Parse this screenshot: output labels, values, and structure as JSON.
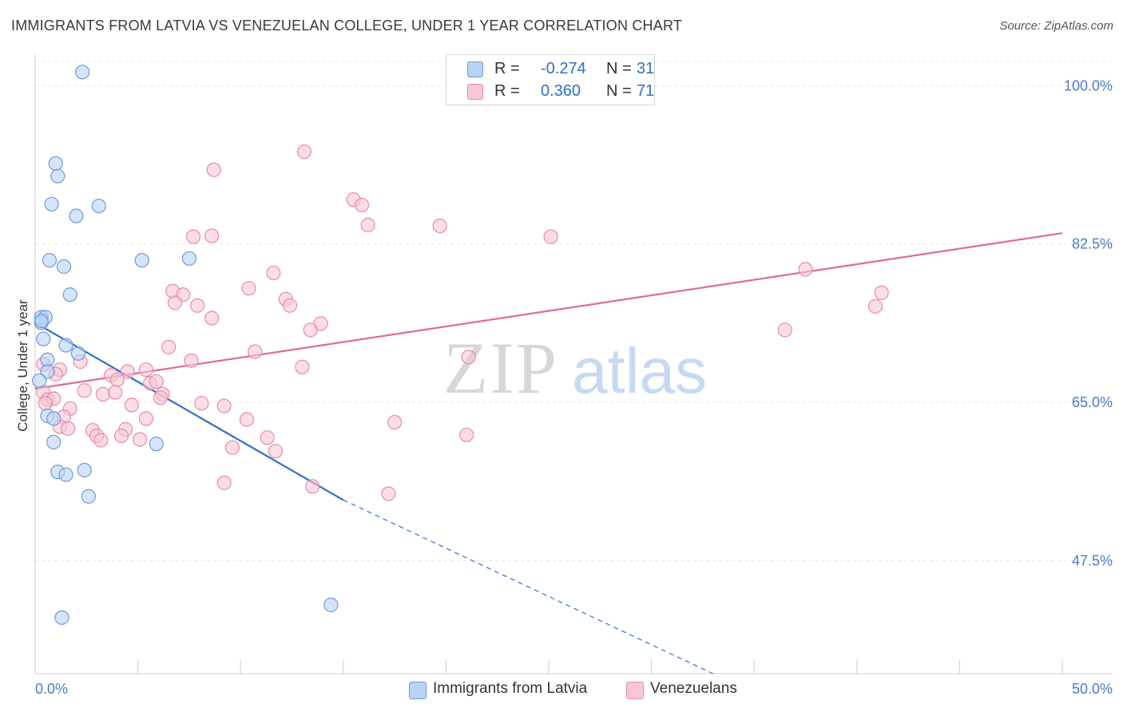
{
  "title": "IMMIGRANTS FROM LATVIA VS VENEZUELAN COLLEGE, UNDER 1 YEAR CORRELATION CHART",
  "source": "Source: ZipAtlas.com",
  "watermark": {
    "zip": "ZIP",
    "atlas": "atlas"
  },
  "legend": {
    "latvia": {
      "r_label": "R =",
      "r_value": "-0.274",
      "n_label": "N =",
      "n_value": "31"
    },
    "venezuela": {
      "r_label": "R =",
      "r_value": "0.360",
      "n_label": "N =",
      "n_value": "71"
    }
  },
  "colors": {
    "latvia_fill": "#b8d3f5",
    "latvia_stroke": "#6f9ad8",
    "latvia_line": "#2f6fd0",
    "venezuela_fill": "#f8c6d6",
    "venezuela_stroke": "#e98aa8",
    "venezuela_line": "#e06b94",
    "axis_text": "#4a7bc8",
    "grid": "#e3e3e3"
  },
  "chart_data": {
    "type": "scatter",
    "title": "IMMIGRANTS FROM LATVIA VS VENEZUELAN COLLEGE, UNDER 1 YEAR CORRELATION CHART",
    "xlabel": "",
    "ylabel": "College, Under 1 year",
    "xlim": [
      0,
      50
    ],
    "ylim": [
      35,
      104
    ],
    "x_tick_labels": [
      "0.0%",
      "50.0%"
    ],
    "y_ticks": [
      100,
      82.5,
      65,
      47.5
    ],
    "y_tick_labels": [
      "100.0%",
      "82.5%",
      "65.0%",
      "47.5%"
    ],
    "grid": true,
    "series": [
      {
        "name": "Immigrants from Latvia",
        "points": [
          [
            2.3,
            101.5
          ],
          [
            1.0,
            91.4
          ],
          [
            1.1,
            90.0
          ],
          [
            0.8,
            86.9
          ],
          [
            2.0,
            85.6
          ],
          [
            3.1,
            86.7
          ],
          [
            0.7,
            80.7
          ],
          [
            1.4,
            80.0
          ],
          [
            5.2,
            80.7
          ],
          [
            7.5,
            80.9
          ],
          [
            1.7,
            76.9
          ],
          [
            0.3,
            74.4
          ],
          [
            0.5,
            74.4
          ],
          [
            0.3,
            73.8
          ],
          [
            0.4,
            72.0
          ],
          [
            1.5,
            71.3
          ],
          [
            2.1,
            70.4
          ],
          [
            0.6,
            69.7
          ],
          [
            0.6,
            68.4
          ],
          [
            0.2,
            67.4
          ],
          [
            0.6,
            63.5
          ],
          [
            0.9,
            63.2
          ],
          [
            0.9,
            60.6
          ],
          [
            5.9,
            60.4
          ],
          [
            1.1,
            57.3
          ],
          [
            1.5,
            57.0
          ],
          [
            2.4,
            57.5
          ],
          [
            2.6,
            54.6
          ],
          [
            14.4,
            42.6
          ],
          [
            1.3,
            41.2
          ],
          [
            0.3,
            74.0
          ]
        ],
        "trend": {
          "x0": 0,
          "y0": 73.8,
          "x1": 15,
          "y1": 54.2,
          "dash_to_x": 33,
          "dash_to_y": 35
        }
      },
      {
        "name": "Venezuelans",
        "points": [
          [
            13.1,
            92.7
          ],
          [
            8.7,
            90.7
          ],
          [
            15.5,
            87.4
          ],
          [
            15.9,
            86.8
          ],
          [
            16.2,
            84.6
          ],
          [
            19.7,
            84.5
          ],
          [
            25.1,
            83.3
          ],
          [
            7.7,
            83.3
          ],
          [
            8.6,
            83.4
          ],
          [
            11.6,
            79.3
          ],
          [
            10.4,
            77.6
          ],
          [
            6.7,
            77.3
          ],
          [
            7.2,
            76.9
          ],
          [
            6.8,
            76.0
          ],
          [
            12.2,
            76.4
          ],
          [
            7.9,
            75.7
          ],
          [
            12.4,
            75.7
          ],
          [
            37.5,
            79.7
          ],
          [
            41.2,
            77.1
          ],
          [
            40.9,
            75.6
          ],
          [
            8.6,
            74.3
          ],
          [
            13.9,
            73.7
          ],
          [
            13.4,
            73.0
          ],
          [
            36.5,
            73.0
          ],
          [
            6.5,
            71.1
          ],
          [
            10.7,
            70.6
          ],
          [
            21.1,
            70.0
          ],
          [
            7.6,
            69.6
          ],
          [
            2.2,
            69.5
          ],
          [
            0.4,
            69.2
          ],
          [
            1.2,
            68.6
          ],
          [
            5.4,
            68.6
          ],
          [
            4.5,
            68.4
          ],
          [
            3.7,
            68.0
          ],
          [
            1.0,
            68.1
          ],
          [
            13.0,
            68.9
          ],
          [
            4.0,
            67.5
          ],
          [
            5.6,
            67.1
          ],
          [
            5.9,
            67.3
          ],
          [
            2.4,
            66.3
          ],
          [
            3.3,
            65.9
          ],
          [
            3.9,
            66.1
          ],
          [
            6.2,
            65.9
          ],
          [
            6.1,
            65.5
          ],
          [
            0.4,
            66.1
          ],
          [
            0.6,
            65.3
          ],
          [
            0.9,
            65.4
          ],
          [
            0.5,
            64.9
          ],
          [
            8.1,
            64.9
          ],
          [
            9.2,
            64.6
          ],
          [
            4.7,
            64.7
          ],
          [
            1.7,
            64.3
          ],
          [
            1.4,
            63.4
          ],
          [
            5.4,
            63.2
          ],
          [
            10.3,
            63.1
          ],
          [
            17.5,
            62.8
          ],
          [
            1.2,
            62.3
          ],
          [
            1.6,
            62.1
          ],
          [
            2.8,
            61.9
          ],
          [
            4.4,
            62.0
          ],
          [
            3.0,
            61.3
          ],
          [
            4.2,
            61.3
          ],
          [
            3.2,
            60.8
          ],
          [
            5.1,
            60.9
          ],
          [
            11.3,
            61.1
          ],
          [
            21.0,
            61.4
          ],
          [
            9.6,
            60.0
          ],
          [
            11.7,
            59.6
          ],
          [
            9.2,
            56.1
          ],
          [
            13.5,
            55.7
          ],
          [
            17.2,
            54.9
          ]
        ],
        "trend": {
          "x0": 0,
          "y0": 66.5,
          "x1": 50,
          "y1": 83.7
        }
      }
    ]
  },
  "bottom_legend": [
    "Immigrants from Latvia",
    "Venezuelans"
  ]
}
